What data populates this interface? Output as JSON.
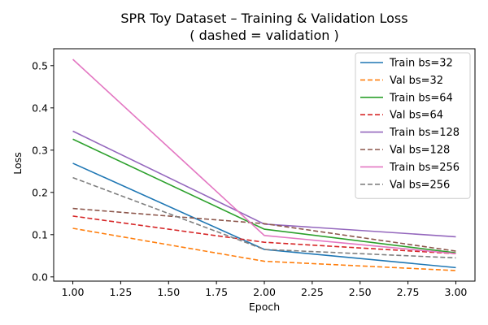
{
  "chart_data": {
    "type": "line",
    "title": "SPR Toy Dataset – Training & Validation Loss",
    "subtitle": "( dashed = validation )",
    "xlabel": "Epoch",
    "ylabel": "Loss",
    "xlim": [
      0.9,
      3.1
    ],
    "ylim": [
      -0.01,
      0.54
    ],
    "xticks": [
      "1.00",
      "1.25",
      "1.50",
      "1.75",
      "2.00",
      "2.25",
      "2.50",
      "2.75",
      "3.00"
    ],
    "yticks": [
      "0.0",
      "0.1",
      "0.2",
      "0.3",
      "0.4",
      "0.5"
    ],
    "grid": false,
    "legend_position": "top-right",
    "x": [
      1,
      2,
      3
    ],
    "series": [
      {
        "name": "Train bs=32",
        "color": "#1f77b4",
        "dashed": false,
        "values": [
          0.269,
          0.065,
          0.022
        ]
      },
      {
        "name": "Val bs=32",
        "color": "#ff7f0e",
        "dashed": true,
        "values": [
          0.115,
          0.037,
          0.015
        ]
      },
      {
        "name": "Train bs=64",
        "color": "#2ca02c",
        "dashed": false,
        "values": [
          0.326,
          0.113,
          0.057
        ]
      },
      {
        "name": "Val bs=64",
        "color": "#d62728",
        "dashed": true,
        "values": [
          0.144,
          0.082,
          0.055
        ]
      },
      {
        "name": "Train bs=128",
        "color": "#9467bd",
        "dashed": false,
        "values": [
          0.345,
          0.125,
          0.095
        ]
      },
      {
        "name": "Val bs=128",
        "color": "#8c564b",
        "dashed": true,
        "values": [
          0.162,
          0.126,
          0.061
        ]
      },
      {
        "name": "Train bs=256",
        "color": "#e377c2",
        "dashed": false,
        "values": [
          0.515,
          0.098,
          0.055
        ]
      },
      {
        "name": "Val bs=256",
        "color": "#7f7f7f",
        "dashed": true,
        "values": [
          0.235,
          0.065,
          0.045
        ]
      }
    ]
  }
}
